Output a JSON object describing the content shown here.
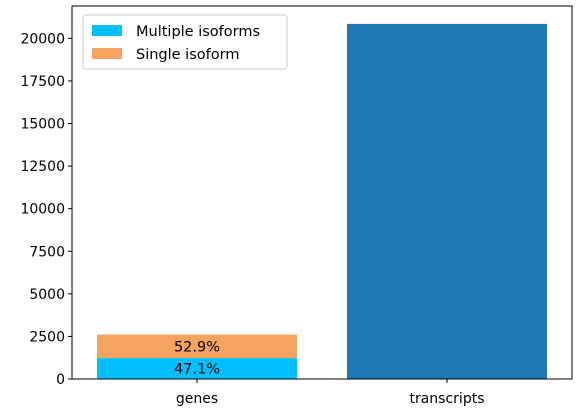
{
  "chart_data": {
    "type": "bar",
    "stacked": true,
    "categories": [
      "genes",
      "transcripts"
    ],
    "series": [
      {
        "name": "Multiple isoforms",
        "color": "#00bfff",
        "values": [
          1230,
          null
        ]
      },
      {
        "name": "Single isoform",
        "color": "#f4a460",
        "values": [
          1380,
          null
        ]
      },
      {
        "name": "",
        "color": "#1f77b4",
        "values": [
          null,
          20850
        ]
      }
    ],
    "data_labels": [
      {
        "category": "genes",
        "series": "Multiple isoforms",
        "text": "47.1%"
      },
      {
        "category": "genes",
        "series": "Single isoform",
        "text": "52.9%"
      }
    ],
    "yticks": [
      0,
      2500,
      5000,
      7500,
      10000,
      12500,
      15000,
      17500,
      20000
    ],
    "ylim": [
      0,
      21900
    ],
    "legend": {
      "position": "top-left",
      "entries": [
        "Multiple isoforms",
        "Single isoform"
      ]
    },
    "grid": false,
    "xlabel": "",
    "ylabel": "",
    "title": ""
  }
}
